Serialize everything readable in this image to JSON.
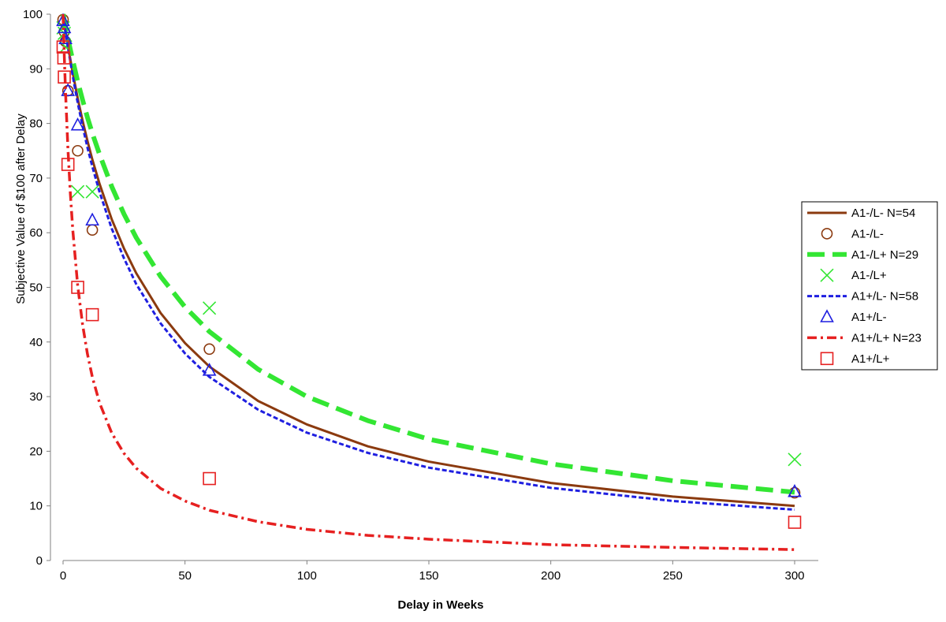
{
  "chart_data": {
    "type": "scatter",
    "title": "",
    "xlabel": "Delay in Weeks",
    "ylabel": "Subjective Value of $100 after Delay",
    "xlim": [
      0,
      300
    ],
    "ylim": [
      0,
      100
    ],
    "x_ticks": [
      0,
      50,
      100,
      150,
      200,
      250,
      300
    ],
    "y_ticks": [
      0,
      10,
      20,
      30,
      40,
      50,
      60,
      70,
      80,
      90,
      100
    ],
    "grid": false,
    "legend_position": "right",
    "series": [
      {
        "name": "A1-/L- N=54",
        "kind": "line",
        "style": "solid",
        "color": "#8B3A0F",
        "x": [
          0,
          1,
          2,
          4,
          6,
          8,
          10,
          12,
          15,
          20,
          25,
          30,
          40,
          50,
          60,
          80,
          100,
          125,
          150,
          200,
          250,
          300
        ],
        "y": [
          100,
          97.0,
          94.2,
          89.2,
          84.6,
          80.5,
          76.8,
          73.4,
          68.9,
          62.4,
          57.1,
          52.6,
          45.3,
          39.8,
          35.5,
          29.2,
          24.9,
          20.9,
          18.1,
          14.2,
          11.7,
          10.0
        ]
      },
      {
        "name": "A1-/L-",
        "kind": "points",
        "marker": "circle",
        "color": "#8B3A0F",
        "x": [
          0,
          0.5,
          1,
          2,
          6,
          12,
          60,
          300
        ],
        "y": [
          99,
          96.8,
          95,
          86,
          75,
          60.5,
          38.7,
          12.4
        ]
      },
      {
        "name": "A1-/L+ N=29",
        "kind": "line",
        "style": "longdash",
        "color": "#33E633",
        "x": [
          0,
          1,
          2,
          4,
          6,
          8,
          10,
          12,
          15,
          20,
          25,
          30,
          40,
          50,
          60,
          80,
          100,
          125,
          150,
          200,
          250,
          300
        ],
        "y": [
          100,
          97.7,
          95.5,
          91.5,
          87.7,
          84.3,
          81.1,
          78.2,
          74.3,
          68.4,
          63.4,
          59.1,
          52.0,
          46.4,
          41.9,
          35.0,
          30.0,
          25.6,
          22.2,
          17.7,
          14.6,
          12.5
        ]
      },
      {
        "name": "A1-/L+",
        "kind": "points",
        "marker": "x",
        "color": "#33E633",
        "x": [
          0,
          0.5,
          1,
          6,
          12,
          60,
          300
        ],
        "y": [
          97.5,
          96.5,
          94,
          67.5,
          67.5,
          46.2,
          18.5
        ]
      },
      {
        "name": "A1+/L- N=58",
        "kind": "line",
        "style": "dotted",
        "color": "#1F1FE0",
        "x": [
          0,
          1,
          2,
          4,
          6,
          8,
          10,
          12,
          15,
          20,
          25,
          30,
          40,
          50,
          60,
          80,
          100,
          125,
          150,
          200,
          250,
          300
        ],
        "y": [
          100,
          96.8,
          93.9,
          88.6,
          83.8,
          79.5,
          75.6,
          72.1,
          67.4,
          60.7,
          55.3,
          50.6,
          43.4,
          37.9,
          33.6,
          27.6,
          23.4,
          19.7,
          17.0,
          13.3,
          10.9,
          9.3
        ]
      },
      {
        "name": "A1+/L-",
        "kind": "points",
        "marker": "triangle",
        "color": "#1F1FE0",
        "x": [
          0,
          0.5,
          1,
          2,
          6,
          12,
          60,
          300
        ],
        "y": [
          98.8,
          97.5,
          95.5,
          86,
          79.7,
          62.3,
          34.8,
          12.6
        ]
      },
      {
        "name": "A1+/L+ N=23",
        "kind": "line",
        "style": "dashdot",
        "color": "#E62020",
        "x": [
          0,
          0.5,
          1,
          2,
          3,
          4,
          6,
          8,
          10,
          12,
          15,
          20,
          25,
          30,
          40,
          50,
          60,
          80,
          100,
          125,
          150,
          200,
          250,
          300
        ],
        "y": [
          100,
          92.4,
          85.9,
          75.3,
          67.1,
          60.4,
          50.3,
          43.2,
          37.8,
          33.6,
          28.8,
          23.3,
          19.6,
          16.9,
          13.2,
          10.9,
          9.2,
          7.1,
          5.7,
          4.6,
          3.9,
          2.9,
          2.4,
          2.0
        ]
      },
      {
        "name": "A1+/L+",
        "kind": "points",
        "marker": "square",
        "color": "#E62020",
        "x": [
          0,
          0.3,
          0.5,
          2,
          6,
          12,
          60,
          300
        ],
        "y": [
          94,
          92,
          88.5,
          72.5,
          50,
          45,
          15,
          7
        ]
      }
    ]
  }
}
